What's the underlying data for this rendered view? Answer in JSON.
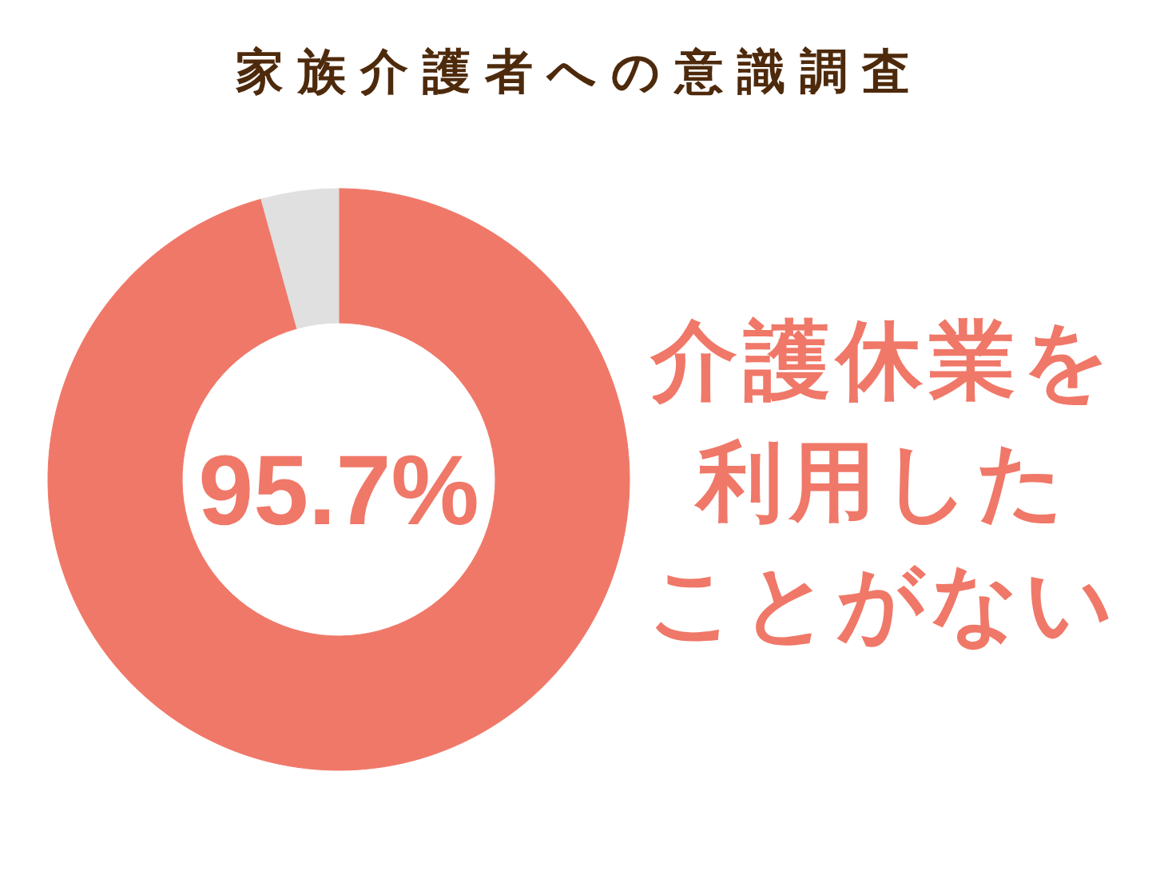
{
  "chart_data": {
    "type": "donut",
    "title": "家族介護者への意識調査",
    "categories": [
      "介護休業を利用したことがない",
      null
    ],
    "values": [
      95.7,
      4.3
    ],
    "colors": [
      "#f07868",
      "#e0e0e0"
    ],
    "value_labels": [
      "95.7%",
      null
    ]
  }
}
